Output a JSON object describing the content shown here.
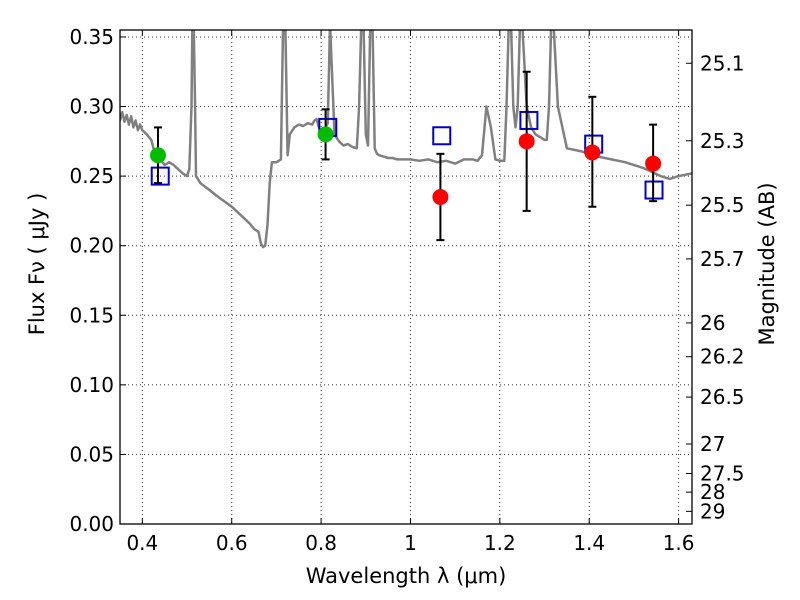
{
  "chart_data": {
    "type": "scatter",
    "xlabel": "Wavelength  λ (μm)",
    "ylabel": "Flux  Fν  ( μJy )",
    "y2label": "Magnitude (AB)",
    "xlim": [
      0.35,
      1.63
    ],
    "ylim": [
      0.0,
      0.355
    ],
    "grid": true,
    "xticks": [
      0.4,
      0.6,
      0.8,
      1.0,
      1.2,
      1.4,
      1.6
    ],
    "xtick_labels": [
      "0.4",
      "0.6",
      "0.8",
      "1",
      "1.2",
      "1.4",
      "1.6"
    ],
    "yticks": [
      0.0,
      0.05,
      0.1,
      0.15,
      0.2,
      0.25,
      0.3,
      0.35
    ],
    "ytick_labels": [
      "0.00",
      "0.05",
      "0.10",
      "0.15",
      "0.20",
      "0.25",
      "0.30",
      "0.35"
    ],
    "y2ticks": [
      {
        "label": "25.1",
        "flux": 0.3311
      },
      {
        "label": "25.3",
        "flux": 0.2754
      },
      {
        "label": "25.5",
        "flux": 0.2291
      },
      {
        "label": "25.7",
        "flux": 0.1905
      },
      {
        "label": "26",
        "flux": 0.1445
      },
      {
        "label": "26.2",
        "flux": 0.1202
      },
      {
        "label": "26.5",
        "flux": 0.0912
      },
      {
        "label": "27",
        "flux": 0.0575
      },
      {
        "label": "27.5",
        "flux": 0.0363
      },
      {
        "label": "28",
        "flux": 0.0229
      },
      {
        "label": "29",
        "flux": 0.0091
      }
    ],
    "series": [
      {
        "type": "line",
        "color": "#808080",
        "x": [
          0.35,
          0.355,
          0.36,
          0.365,
          0.37,
          0.375,
          0.38,
          0.385,
          0.39,
          0.395,
          0.4,
          0.41,
          0.42,
          0.425,
          0.43,
          0.44,
          0.45,
          0.46,
          0.47,
          0.48,
          0.49,
          0.5,
          0.505,
          0.51,
          0.512,
          0.515,
          0.518,
          0.52,
          0.53,
          0.55,
          0.57,
          0.6,
          0.62,
          0.64,
          0.65,
          0.66,
          0.665,
          0.67,
          0.675,
          0.68,
          0.685,
          0.69,
          0.7,
          0.71,
          0.715,
          0.72,
          0.725,
          0.73,
          0.74,
          0.75,
          0.76,
          0.77,
          0.78,
          0.785,
          0.79,
          0.795,
          0.8,
          0.805,
          0.81,
          0.815,
          0.82,
          0.83,
          0.84,
          0.85,
          0.86,
          0.87,
          0.88,
          0.885,
          0.89,
          0.895,
          0.9,
          0.905,
          0.91,
          0.915,
          0.92,
          0.925,
          0.93,
          0.94,
          0.95,
          0.96,
          0.97,
          0.98,
          0.99,
          1.0,
          1.02,
          1.04,
          1.06,
          1.08,
          1.1,
          1.12,
          1.14,
          1.15,
          1.16,
          1.17,
          1.18,
          1.19,
          1.2,
          1.21,
          1.215,
          1.22,
          1.225,
          1.23,
          1.235,
          1.24,
          1.245,
          1.25,
          1.26,
          1.27,
          1.28,
          1.29,
          1.3,
          1.305,
          1.31,
          1.315,
          1.32,
          1.33,
          1.35,
          1.38,
          1.4,
          1.42,
          1.45,
          1.48,
          1.5,
          1.52,
          1.54,
          1.56,
          1.58,
          1.6,
          1.63
        ],
        "y": [
          0.29,
          0.296,
          0.289,
          0.294,
          0.287,
          0.293,
          0.285,
          0.29,
          0.283,
          0.287,
          0.283,
          0.28,
          0.276,
          0.27,
          0.265,
          0.262,
          0.258,
          0.26,
          0.258,
          0.255,
          0.252,
          0.25,
          0.255,
          0.3,
          0.36,
          0.36,
          0.3,
          0.25,
          0.245,
          0.24,
          0.235,
          0.228,
          0.222,
          0.216,
          0.212,
          0.21,
          0.202,
          0.199,
          0.2,
          0.215,
          0.245,
          0.26,
          0.26,
          0.262,
          0.36,
          0.36,
          0.265,
          0.28,
          0.285,
          0.287,
          0.286,
          0.288,
          0.287,
          0.29,
          0.291,
          0.285,
          0.282,
          0.28,
          0.285,
          0.288,
          0.36,
          0.28,
          0.275,
          0.272,
          0.273,
          0.271,
          0.27,
          0.3,
          0.36,
          0.36,
          0.28,
          0.272,
          0.36,
          0.36,
          0.27,
          0.266,
          0.265,
          0.264,
          0.263,
          0.263,
          0.262,
          0.262,
          0.262,
          0.262,
          0.261,
          0.262,
          0.26,
          0.261,
          0.259,
          0.262,
          0.262,
          0.261,
          0.265,
          0.3,
          0.285,
          0.262,
          0.261,
          0.261,
          0.3,
          0.36,
          0.36,
          0.3,
          0.285,
          0.3,
          0.36,
          0.36,
          0.3,
          0.285,
          0.28,
          0.278,
          0.276,
          0.276,
          0.3,
          0.36,
          0.36,
          0.3,
          0.27,
          0.268,
          0.266,
          0.264,
          0.262,
          0.26,
          0.258,
          0.256,
          0.253,
          0.25,
          0.248,
          0.25,
          0.252
        ]
      },
      {
        "type": "scatter",
        "marker": "square",
        "color": "#0000cc",
        "x": [
          0.44,
          0.815,
          1.07,
          1.265,
          1.41,
          1.545
        ],
        "y": [
          0.25,
          0.285,
          0.279,
          0.29,
          0.273,
          0.24
        ]
      },
      {
        "type": "scatter",
        "marker": "circle",
        "color": "#00bb00",
        "x": [
          0.435,
          0.81
        ],
        "y": [
          0.265,
          0.28
        ]
      },
      {
        "type": "scatter",
        "marker": "circle",
        "color": "#ff0000",
        "x": [
          1.067,
          1.26,
          1.407,
          1.543
        ],
        "y": [
          0.235,
          0.275,
          0.267,
          0.259
        ]
      },
      {
        "type": "errorbar",
        "color": "#000000",
        "x": [
          0.435,
          0.81,
          1.067,
          1.26,
          1.407,
          1.543
        ],
        "y": [
          0.265,
          0.28,
          0.235,
          0.275,
          0.267,
          0.259
        ],
        "ylow": [
          0.245,
          0.262,
          0.204,
          0.225,
          0.228,
          0.232
        ],
        "yhigh": [
          0.285,
          0.298,
          0.266,
          0.325,
          0.307,
          0.287
        ]
      }
    ]
  }
}
